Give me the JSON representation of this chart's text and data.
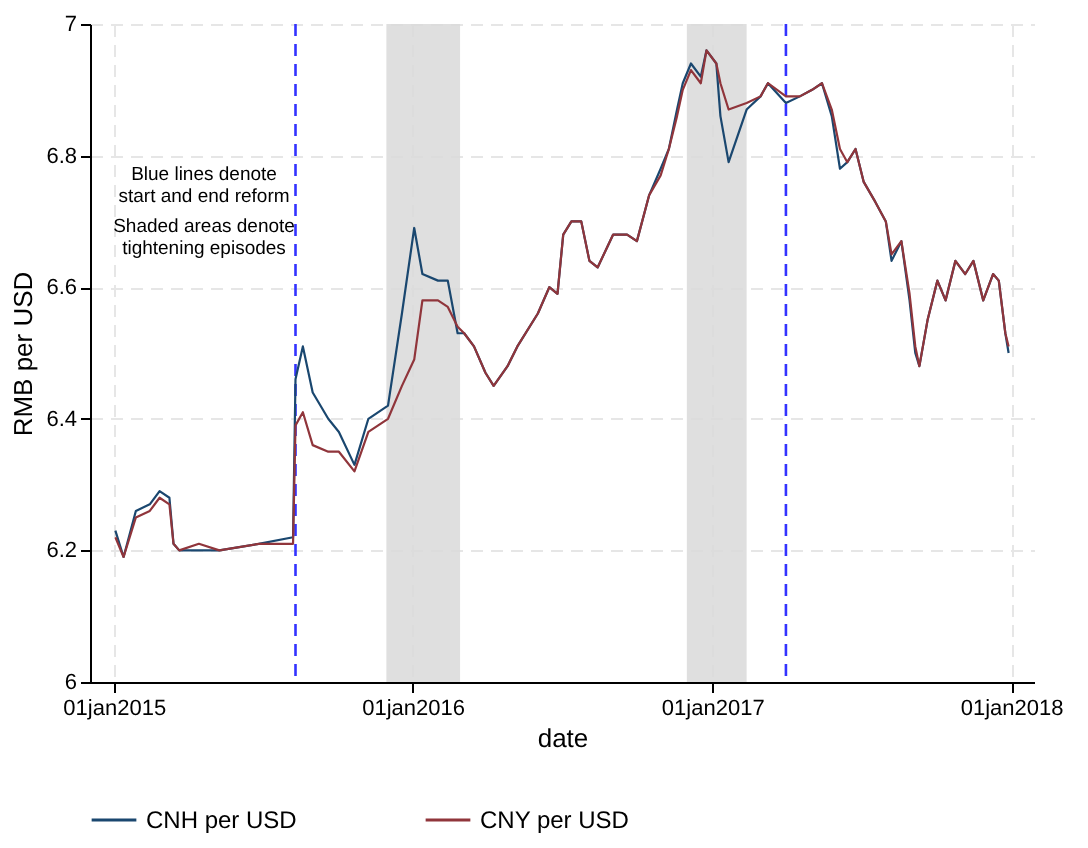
{
  "chart_data": {
    "type": "line",
    "xlabel": "date",
    "ylabel": "RMB per USD",
    "xlim": [
      "2014-12-03",
      "2018-01-29"
    ],
    "ylim": [
      6,
      7
    ],
    "yticks": [
      6,
      6.2,
      6.4,
      6.6,
      6.8,
      7
    ],
    "xticks": [
      {
        "value": "2015-01-01",
        "label": "01jan2015"
      },
      {
        "value": "2016-01-01",
        "label": "01jan2016"
      },
      {
        "value": "2017-01-01",
        "label": "01jan2017"
      },
      {
        "value": "2018-01-01",
        "label": "01jan2018"
      }
    ],
    "grid": true,
    "legend": "bottom",
    "x": [
      "2015-01-03",
      "2015-01-13",
      "2015-01-28",
      "2015-02-14",
      "2015-02-26",
      "2015-03-10",
      "2015-03-15",
      "2015-03-22",
      "2015-04-15",
      "2015-05-10",
      "2015-06-27",
      "2015-08-08",
      "2015-08-11",
      "2015-08-20",
      "2015-09-01",
      "2015-09-20",
      "2015-10-03",
      "2015-10-22",
      "2015-11-08",
      "2015-12-02",
      "2015-12-19",
      "2016-01-03",
      "2016-01-13",
      "2016-02-01",
      "2016-02-13",
      "2016-02-25",
      "2016-03-04",
      "2016-03-16",
      "2016-03-30",
      "2016-04-09",
      "2016-04-26",
      "2016-05-08",
      "2016-06-02",
      "2016-06-16",
      "2016-06-26",
      "2016-07-03",
      "2016-07-13",
      "2016-07-25",
      "2016-08-04",
      "2016-08-14",
      "2016-09-02",
      "2016-09-19",
      "2016-10-01",
      "2016-10-16",
      "2016-10-30",
      "2016-11-09",
      "2016-11-19",
      "2016-11-26",
      "2016-12-06",
      "2016-12-18",
      "2016-12-25",
      "2017-01-06",
      "2017-01-11",
      "2017-01-21",
      "2017-02-12",
      "2017-03-01",
      "2017-03-10",
      "2017-04-01",
      "2017-04-18",
      "2017-05-03",
      "2017-05-15",
      "2017-05-27",
      "2017-06-06",
      "2017-06-15",
      "2017-06-25",
      "2017-07-05",
      "2017-07-19",
      "2017-08-01",
      "2017-08-08",
      "2017-08-20",
      "2017-08-30",
      "2017-09-06",
      "2017-09-11",
      "2017-09-21",
      "2017-10-03",
      "2017-10-13",
      "2017-10-25",
      "2017-11-06",
      "2017-11-16",
      "2017-11-28",
      "2017-12-10",
      "2017-12-17",
      "2017-12-25",
      "2017-12-29"
    ],
    "series": [
      {
        "name": "CNH per USD",
        "color": "#1a476f",
        "values": [
          6.23,
          6.19,
          6.26,
          6.27,
          6.29,
          6.28,
          6.21,
          6.2,
          6.2,
          6.2,
          6.21,
          6.22,
          6.46,
          6.51,
          6.44,
          6.4,
          6.38,
          6.33,
          6.4,
          6.42,
          6.56,
          6.69,
          6.62,
          6.61,
          6.61,
          6.53,
          6.53,
          6.51,
          6.47,
          6.45,
          6.48,
          6.51,
          6.56,
          6.6,
          6.59,
          6.68,
          6.7,
          6.7,
          6.64,
          6.63,
          6.68,
          6.68,
          6.67,
          6.74,
          6.78,
          6.81,
          6.87,
          6.91,
          6.94,
          6.92,
          6.96,
          6.94,
          6.86,
          6.79,
          6.87,
          6.89,
          6.91,
          6.88,
          6.89,
          6.9,
          6.91,
          6.86,
          6.78,
          6.79,
          6.81,
          6.76,
          6.73,
          6.7,
          6.64,
          6.67,
          6.58,
          6.5,
          6.48,
          6.55,
          6.61,
          6.58,
          6.64,
          6.62,
          6.64,
          6.58,
          6.62,
          6.61,
          6.53,
          6.5
        ]
      },
      {
        "name": "CNY per USD",
        "color": "#90353b",
        "values": [
          6.22,
          6.19,
          6.25,
          6.26,
          6.28,
          6.27,
          6.21,
          6.2,
          6.21,
          6.2,
          6.21,
          6.21,
          6.39,
          6.41,
          6.36,
          6.35,
          6.35,
          6.32,
          6.38,
          6.4,
          6.45,
          6.49,
          6.58,
          6.58,
          6.57,
          6.54,
          6.53,
          6.51,
          6.47,
          6.45,
          6.48,
          6.51,
          6.56,
          6.6,
          6.59,
          6.68,
          6.7,
          6.7,
          6.64,
          6.63,
          6.68,
          6.68,
          6.67,
          6.74,
          6.77,
          6.81,
          6.86,
          6.9,
          6.93,
          6.91,
          6.96,
          6.94,
          6.91,
          6.87,
          6.88,
          6.89,
          6.91,
          6.89,
          6.89,
          6.9,
          6.91,
          6.87,
          6.81,
          6.79,
          6.81,
          6.76,
          6.73,
          6.7,
          6.65,
          6.67,
          6.59,
          6.51,
          6.48,
          6.55,
          6.61,
          6.58,
          6.64,
          6.62,
          6.64,
          6.58,
          6.62,
          6.61,
          6.53,
          6.51
        ]
      }
    ],
    "ref_lines": [
      {
        "axis": "x",
        "value": "2015-08-11",
        "color": "#3333ff",
        "line_style": "dashed"
      },
      {
        "axis": "x",
        "value": "2017-04-01",
        "color": "#3333ff",
        "line_style": "dashed"
      }
    ],
    "bands": [
      {
        "axis": "x",
        "from": "2015-11-30",
        "to": "2016-02-28",
        "color": "#d9d9d9"
      },
      {
        "axis": "x",
        "from": "2016-12-01",
        "to": "2017-02-12",
        "color": "#d9d9d9"
      }
    ],
    "annotations": [
      "Blue lines denote\nstart and end reform",
      "Shaded areas denote\ntightening episodes"
    ]
  }
}
